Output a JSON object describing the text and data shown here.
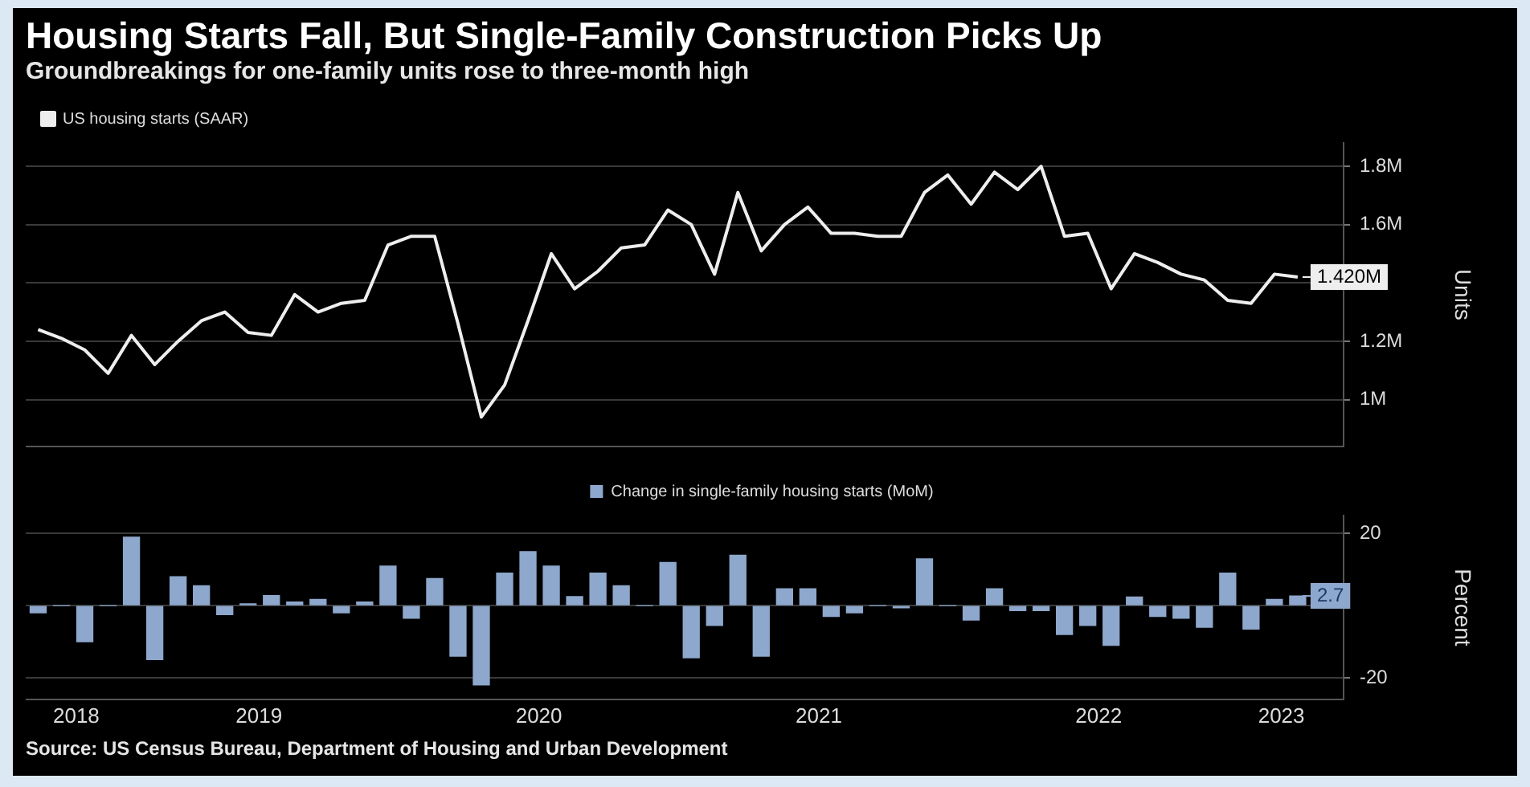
{
  "chart_data": [
    {
      "type": "line",
      "title": "Housing Starts Fall, But Single-Family Construction Picks Up",
      "subtitle": "Groundbreakings for one-family units rose to three-month high",
      "ylabel": "Units",
      "legend": "top left",
      "grid": "y",
      "tick_labels": "y",
      "marker": "none",
      "line_style": "solid",
      "x": [
        "2018-09",
        "2018-10",
        "2018-11",
        "2018-12",
        "2019-01",
        "2019-02",
        "2019-03",
        "2019-04",
        "2019-05",
        "2019-06",
        "2019-07",
        "2019-08",
        "2019-09",
        "2019-10",
        "2019-11",
        "2019-12",
        "2020-01",
        "2020-02",
        "2020-03",
        "2020-04",
        "2020-05",
        "2020-06",
        "2020-07",
        "2020-08",
        "2020-09",
        "2020-10",
        "2020-11",
        "2020-12",
        "2021-01",
        "2021-02",
        "2021-03",
        "2021-04",
        "2021-05",
        "2021-06",
        "2021-07",
        "2021-08",
        "2021-09",
        "2021-10",
        "2021-11",
        "2021-12",
        "2022-01",
        "2022-02",
        "2022-03",
        "2022-04",
        "2022-05",
        "2022-06",
        "2022-07",
        "2022-08",
        "2022-09",
        "2022-10",
        "2022-11",
        "2022-12",
        "2023-01",
        "2023-02",
        "2023-03"
      ],
      "series": [
        {
          "name": "US housing starts (SAAR)",
          "color": "#eeeeee",
          "values": [
            1.24,
            1.21,
            1.17,
            1.09,
            1.22,
            1.12,
            1.2,
            1.27,
            1.3,
            1.23,
            1.22,
            1.36,
            1.3,
            1.33,
            1.34,
            1.53,
            1.56,
            1.56,
            1.26,
            0.94,
            1.05,
            1.27,
            1.5,
            1.38,
            1.44,
            1.52,
            1.53,
            1.65,
            1.6,
            1.43,
            1.71,
            1.51,
            1.6,
            1.66,
            1.57,
            1.57,
            1.56,
            1.56,
            1.71,
            1.77,
            1.67,
            1.78,
            1.72,
            1.8,
            1.56,
            1.57,
            1.38,
            1.5,
            1.47,
            1.43,
            1.41,
            1.34,
            1.33,
            1.43,
            1.42
          ]
        }
      ],
      "xlim": [
        "2018-08-15",
        "2023-04-30"
      ],
      "ylim": [
        0.84,
        1.88
      ],
      "yticks": [
        {
          "value": 1,
          "label": "1M"
        },
        {
          "value": 1.2,
          "label": "1.2M"
        },
        {
          "value": 1.4,
          "label": null
        },
        {
          "value": 1.6,
          "label": "1.6M"
        },
        {
          "value": 1.8,
          "label": "1.8M"
        }
      ],
      "annotations": [
        {
          "text": "1.420M",
          "x": "2023-03",
          "y": 1.42
        }
      ]
    },
    {
      "type": "bar",
      "ylabel": "Percent",
      "legend": "top",
      "grid": "y",
      "x": [
        "2018-09",
        "2018-10",
        "2018-11",
        "2018-12",
        "2019-01",
        "2019-02",
        "2019-03",
        "2019-04",
        "2019-05",
        "2019-06",
        "2019-07",
        "2019-08",
        "2019-09",
        "2019-10",
        "2019-11",
        "2019-12",
        "2020-01",
        "2020-02",
        "2020-03",
        "2020-04",
        "2020-05",
        "2020-06",
        "2020-07",
        "2020-08",
        "2020-09",
        "2020-10",
        "2020-11",
        "2020-12",
        "2021-01",
        "2021-02",
        "2021-03",
        "2021-04",
        "2021-05",
        "2021-06",
        "2021-07",
        "2021-08",
        "2021-09",
        "2021-10",
        "2021-11",
        "2021-12",
        "2022-01",
        "2022-02",
        "2022-03",
        "2022-04",
        "2022-05",
        "2022-06",
        "2022-07",
        "2022-08",
        "2022-09",
        "2022-10",
        "2022-11",
        "2022-12",
        "2023-01",
        "2023-02",
        "2023-03"
      ],
      "series": [
        {
          "name": "Change in single-family housing starts (MoM)",
          "color": "#8ea7cc",
          "values": [
            -2,
            0,
            -10,
            0,
            19,
            -15,
            8,
            5.5,
            -2.5,
            0.5,
            2.8,
            1,
            1.7,
            -2,
            1,
            11,
            -3.5,
            7.5,
            -14,
            -22,
            9,
            15,
            11,
            2.5,
            9,
            5.5,
            0,
            12,
            -14.5,
            -5.5,
            14,
            -14,
            4.7,
            4.7,
            -3,
            -2,
            0,
            -0.6,
            13,
            0,
            -4,
            4.7,
            -1.4,
            -1.4,
            -8,
            -5.5,
            -11,
            2.4,
            -3,
            -3.5,
            -6,
            9,
            -6.5,
            1.7,
            2.7
          ]
        }
      ],
      "xlim": [
        "2018-08-15",
        "2023-04-30"
      ],
      "xticks": [
        {
          "value": "2018-10-20",
          "label": "2018"
        },
        {
          "value": "2019-06-15",
          "label": "2019"
        },
        {
          "value": "2020-06-15",
          "label": "2020"
        },
        {
          "value": "2021-06-15",
          "label": "2021"
        },
        {
          "value": "2022-06-15",
          "label": "2022"
        },
        {
          "value": "2023-02-10",
          "label": "2023"
        }
      ],
      "ylim": [
        -26,
        25
      ],
      "yticks": [
        {
          "value": -20,
          "label": "-20"
        },
        {
          "value": 0,
          "label": null
        },
        {
          "value": 20,
          "label": "20"
        }
      ],
      "annotations": [
        {
          "text": "2.7",
          "x": "2023-03",
          "y": 2.7
        },
        "Source: US Census Bureau, Department of Housing and Urban Development"
      ]
    }
  ]
}
